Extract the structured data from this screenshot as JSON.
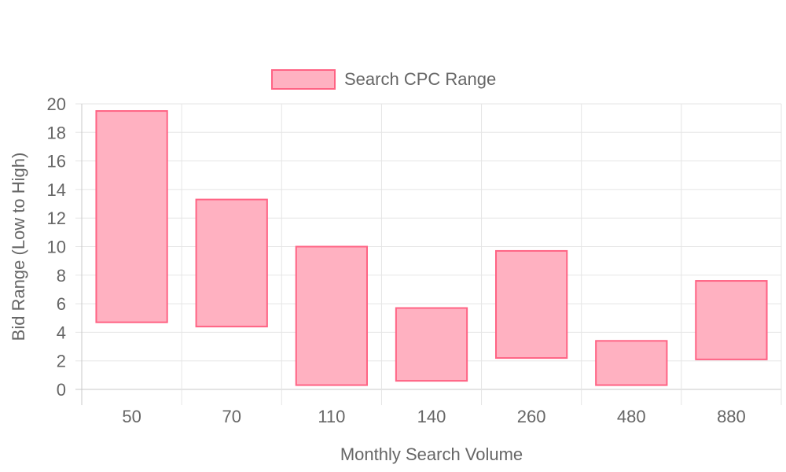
{
  "chart_data": {
    "type": "bar",
    "title": "",
    "xlabel": "Monthly Search Volume",
    "ylabel": "Bid Range (Low to High)",
    "ylim": [
      0,
      20
    ],
    "yticks": [
      0,
      2,
      4,
      6,
      8,
      10,
      12,
      14,
      16,
      18,
      20
    ],
    "categories": [
      "50",
      "70",
      "110",
      "140",
      "260",
      "480",
      "880"
    ],
    "series": [
      {
        "name": "Search CPC Range",
        "low": [
          4.7,
          4.4,
          0.3,
          0.6,
          2.2,
          0.3,
          2.1
        ],
        "high": [
          19.5,
          13.3,
          10.0,
          5.7,
          9.7,
          3.4,
          7.6
        ]
      }
    ],
    "grid": true,
    "legend": "top-center",
    "colors": {
      "fill": "#ffb1c1",
      "stroke": "#ff6384",
      "grid": "#e5e5e5",
      "axis": "#c8c8c8",
      "text": "#666666"
    }
  }
}
